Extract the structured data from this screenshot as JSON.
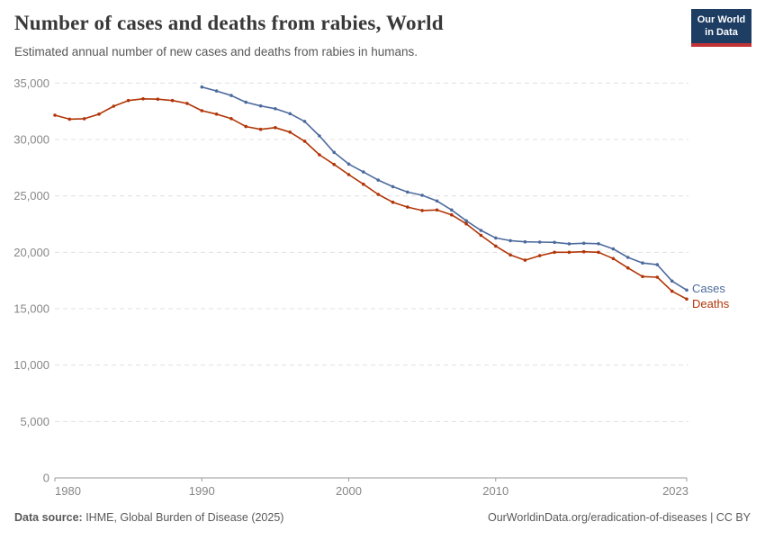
{
  "header": {
    "title": "Number of cases and deaths from rabies, World",
    "subtitle": "Estimated annual number of new cases and deaths from rabies in humans.",
    "logo": {
      "line1": "Our World",
      "line2": "in Data",
      "bg_color": "#1d3d63",
      "accent_color": "#c23335"
    }
  },
  "chart_data": {
    "type": "line",
    "title": "Number of cases and deaths from rabies, World",
    "xlabel": "",
    "ylabel": "",
    "xlim": [
      1980,
      2023
    ],
    "ylim": [
      0,
      35000
    ],
    "grid": "horizontal-dashed",
    "legend_position": "end-of-line-labels",
    "x_ticks": [
      1980,
      1990,
      2000,
      2010,
      2023
    ],
    "x_tick_labels": [
      "1980",
      "1990",
      "2000",
      "2010",
      "2023"
    ],
    "y_ticks": [
      0,
      5000,
      10000,
      15000,
      20000,
      25000,
      30000,
      35000
    ],
    "y_tick_labels": [
      "0",
      "5,000",
      "10,000",
      "15,000",
      "20,000",
      "25,000",
      "30,000",
      "35,000"
    ],
    "series": [
      {
        "name": "Cases",
        "color": "#4C6A9C",
        "start_year": 1990,
        "years": [
          1990,
          1991,
          1992,
          1993,
          1994,
          1995,
          1996,
          1997,
          1998,
          1999,
          2000,
          2001,
          2002,
          2003,
          2004,
          2005,
          2006,
          2007,
          2008,
          2009,
          2010,
          2011,
          2012,
          2013,
          2014,
          2015,
          2016,
          2017,
          2018,
          2019,
          2020,
          2021,
          2022,
          2023
        ],
        "values": [
          34650,
          34300,
          33900,
          33300,
          32970,
          32730,
          32290,
          31600,
          30320,
          28860,
          27820,
          27120,
          26400,
          25820,
          25340,
          25050,
          24550,
          23750,
          22790,
          21940,
          21270,
          21030,
          20930,
          20900,
          20880,
          20750,
          20800,
          20760,
          20300,
          19550,
          19050,
          18900,
          17450,
          16650
        ]
      },
      {
        "name": "Deaths",
        "color": "#B13507",
        "start_year": 1980,
        "years": [
          1980,
          1981,
          1982,
          1983,
          1984,
          1985,
          1986,
          1987,
          1988,
          1989,
          1990,
          1991,
          1992,
          1993,
          1994,
          1995,
          1996,
          1997,
          1998,
          1999,
          2000,
          2001,
          2002,
          2003,
          2004,
          2005,
          2006,
          2007,
          2008,
          2009,
          2010,
          2011,
          2012,
          2013,
          2014,
          2015,
          2016,
          2017,
          2018,
          2019,
          2020,
          2021,
          2022,
          2023
        ],
        "values": [
          32150,
          31800,
          31840,
          32250,
          32950,
          33450,
          33600,
          33570,
          33450,
          33200,
          32550,
          32250,
          31850,
          31150,
          30900,
          31050,
          30650,
          29850,
          28640,
          27790,
          26890,
          26030,
          25130,
          24440,
          24010,
          23700,
          23750,
          23320,
          22520,
          21500,
          20550,
          19760,
          19300,
          19700,
          20000,
          20000,
          20050,
          20000,
          19440,
          18610,
          17850,
          17790,
          16550,
          15850
        ]
      }
    ]
  },
  "footer": {
    "source_label": "Data source:",
    "source_value": " IHME, Global Burden of Disease (2025)",
    "license": "OurWorldinData.org/eradication-of-diseases | CC BY"
  }
}
